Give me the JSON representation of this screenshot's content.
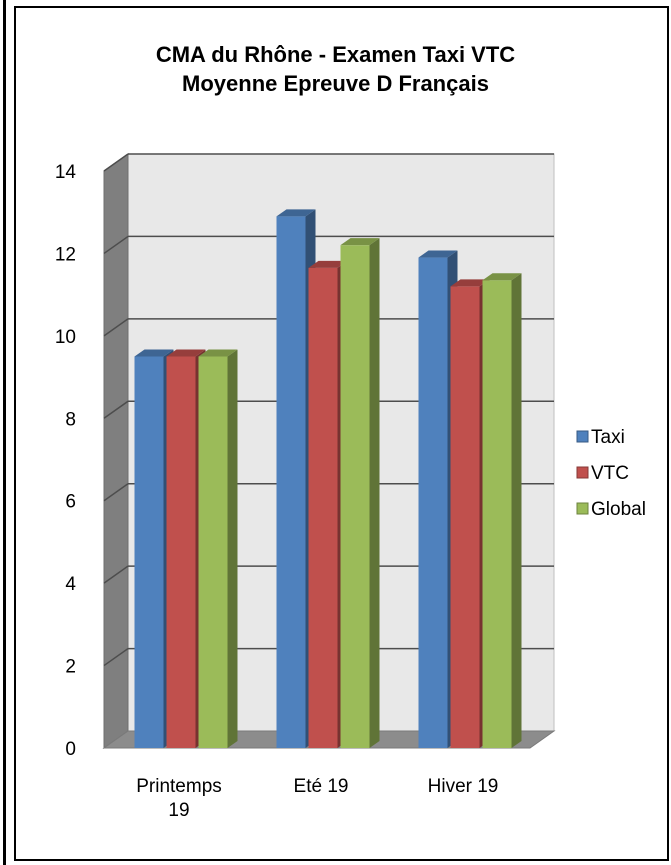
{
  "chart_data": {
    "type": "bar",
    "title_line1": "CMA du Rhône - Examen Taxi VTC",
    "title_line2": "Moyenne Epreuve D Français",
    "categories": [
      [
        "Printemps",
        "19"
      ],
      [
        "Eté 19"
      ],
      [
        "Hiver 19"
      ]
    ],
    "series": [
      {
        "name": "Taxi",
        "values": [
          9.5,
          12.9,
          11.9
        ],
        "color": "#4F81BD"
      },
      {
        "name": "VTC",
        "values": [
          9.5,
          11.65,
          11.2
        ],
        "color": "#C0504D"
      },
      {
        "name": "Global",
        "values": [
          9.5,
          12.2,
          11.35
        ],
        "color": "#9BBB59"
      }
    ],
    "ylim": [
      0,
      14
    ],
    "yticks": [
      0,
      2,
      4,
      6,
      8,
      10,
      12,
      14
    ],
    "grid": true,
    "legend": "right",
    "style": "3d-clustered-column"
  }
}
